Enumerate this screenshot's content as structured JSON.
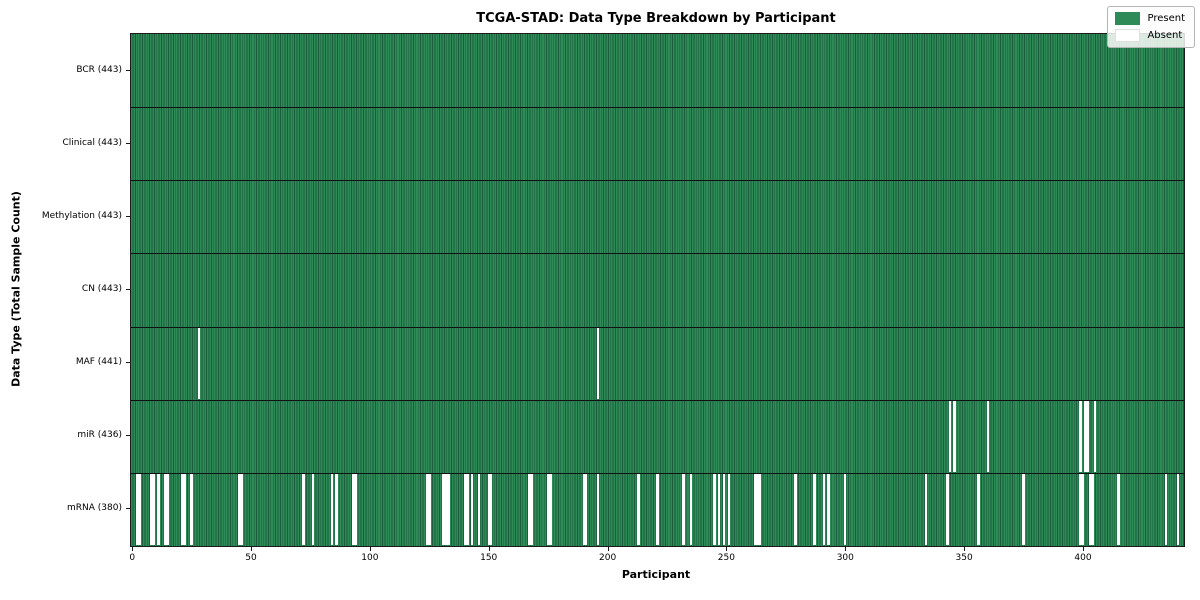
{
  "figure": {
    "title": "TCGA-STAD: Data Type Breakdown by Participant",
    "xlabel": "Participant",
    "ylabel": "Data Type (Total Sample Count)"
  },
  "legend": {
    "present_label": "Present",
    "absent_label": "Absent"
  },
  "chart_data": {
    "type": "heatmap",
    "title": "TCGA-STAD: Data Type Breakdown by Participant",
    "xlabel": "Participant",
    "ylabel": "Data Type (Total Sample Count)",
    "n_participants": 443,
    "xlim": [
      -0.5,
      443
    ],
    "x_ticks": [
      0,
      50,
      100,
      150,
      200,
      250,
      300,
      350,
      400
    ],
    "grid": false,
    "legend_entries": [
      "Present",
      "Absent"
    ],
    "legend_position": "upper right",
    "colors": {
      "present": "#2e8b57",
      "bar_edge": "#1b5e3b",
      "absent": "#ffffff",
      "row_separator": "#111111"
    },
    "rows": [
      {
        "label": "BCR",
        "total": 443,
        "tick_label": "BCR (443)",
        "absent_participants": []
      },
      {
        "label": "Clinical",
        "total": 443,
        "tick_label": "Clinical (443)",
        "absent_participants": []
      },
      {
        "label": "Methylation",
        "total": 443,
        "tick_label": "Methylation (443)",
        "absent_participants": []
      },
      {
        "label": "CN",
        "total": 443,
        "tick_label": "CN (443)",
        "absent_participants": []
      },
      {
        "label": "MAF",
        "total": 441,
        "tick_label": "MAF (441)",
        "absent_participants": [
          28,
          196
        ]
      },
      {
        "label": "miR",
        "total": 436,
        "tick_label": "miR (436)",
        "absent_participants": [
          344,
          346,
          360,
          399,
          401,
          402,
          405
        ]
      },
      {
        "label": "mRNA",
        "total": 380,
        "tick_label": "mRNA (380)",
        "absent_participants": [
          2,
          3,
          8,
          9,
          11,
          14,
          15,
          21,
          22,
          25,
          45,
          46,
          72,
          76,
          84,
          86,
          93,
          94,
          124,
          125,
          131,
          132,
          133,
          140,
          141,
          143,
          146,
          150,
          151,
          167,
          168,
          175,
          176,
          190,
          191,
          196,
          213,
          221,
          232,
          235,
          245,
          247,
          249,
          251,
          262,
          263,
          264,
          279,
          287,
          291,
          293,
          300,
          334,
          343,
          356,
          375,
          399,
          400,
          403,
          404,
          415,
          435,
          440
        ]
      }
    ]
  }
}
